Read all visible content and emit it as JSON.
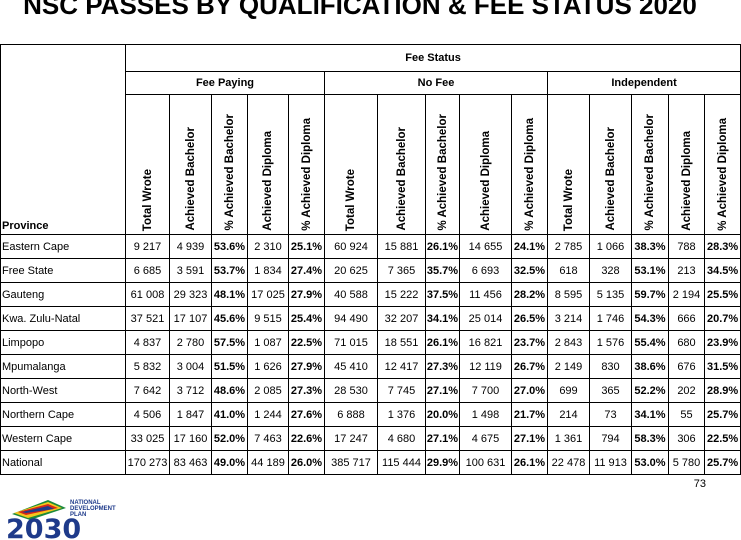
{
  "title": "NSC PASSES BY QUALIFICATION & FEE STATUS 2020",
  "header": {
    "fee_status": "Fee Status",
    "groups": [
      "Fee Paying",
      "No Fee",
      "Independent"
    ],
    "province": "Province",
    "columns": [
      "Total Wrote",
      "Achieved Bachelor",
      "% Achieved Bachelor",
      "Achieved Diploma",
      "% Achieved Diploma"
    ]
  },
  "rows": [
    {
      "province": "Eastern Cape",
      "cells": [
        "9 217",
        "4 939",
        "53.6%",
        "2 310",
        "25.1%",
        "60 924",
        "15 881",
        "26.1%",
        "14 655",
        "24.1%",
        "2 785",
        "1 066",
        "38.3%",
        "788",
        "28.3%"
      ]
    },
    {
      "province": "Free State",
      "cells": [
        "6 685",
        "3 591",
        "53.7%",
        "1 834",
        "27.4%",
        "20 625",
        "7 365",
        "35.7%",
        "6 693",
        "32.5%",
        "618",
        "328",
        "53.1%",
        "213",
        "34.5%"
      ]
    },
    {
      "province": "Gauteng",
      "cells": [
        "61 008",
        "29 323",
        "48.1%",
        "17 025",
        "27.9%",
        "40 588",
        "15 222",
        "37.5%",
        "11 456",
        "28.2%",
        "8 595",
        "5 135",
        "59.7%",
        "2 194",
        "25.5%"
      ]
    },
    {
      "province": "Kwa. Zulu-Natal",
      "cells": [
        "37 521",
        "17 107",
        "45.6%",
        "9 515",
        "25.4%",
        "94 490",
        "32 207",
        "34.1%",
        "25 014",
        "26.5%",
        "3 214",
        "1 746",
        "54.3%",
        "666",
        "20.7%"
      ]
    },
    {
      "province": "Limpopo",
      "cells": [
        "4 837",
        "2 780",
        "57.5%",
        "1 087",
        "22.5%",
        "71 015",
        "18 551",
        "26.1%",
        "16 821",
        "23.7%",
        "2 843",
        "1 576",
        "55.4%",
        "680",
        "23.9%"
      ]
    },
    {
      "province": "Mpumalanga",
      "cells": [
        "5 832",
        "3 004",
        "51.5%",
        "1 626",
        "27.9%",
        "45 410",
        "12 417",
        "27.3%",
        "12 119",
        "26.7%",
        "2 149",
        "830",
        "38.6%",
        "676",
        "31.5%"
      ]
    },
    {
      "province": "North-West",
      "cells": [
        "7 642",
        "3 712",
        "48.6%",
        "2 085",
        "27.3%",
        "28 530",
        "7 745",
        "27.1%",
        "7 700",
        "27.0%",
        "699",
        "365",
        "52.2%",
        "202",
        "28.9%"
      ]
    },
    {
      "province": "Northern Cape",
      "cells": [
        "4 506",
        "1 847",
        "41.0%",
        "1 244",
        "27.6%",
        "6 888",
        "1 376",
        "20.0%",
        "1 498",
        "21.7%",
        "214",
        "73",
        "34.1%",
        "55",
        "25.7%"
      ]
    },
    {
      "province": "Western Cape",
      "cells": [
        "33 025",
        "17 160",
        "52.0%",
        "7 463",
        "22.6%",
        "17 247",
        "4 680",
        "27.1%",
        "4 675",
        "27.1%",
        "1 361",
        "794",
        "58.3%",
        "306",
        "22.5%"
      ]
    },
    {
      "province": "National",
      "cells": [
        "170 273",
        "83 463",
        "49.0%",
        "44 189",
        "26.0%",
        "385 717",
        "115 444",
        "29.9%",
        "100 631",
        "26.1%",
        "22 478",
        "11 913",
        "53.0%",
        "5 780",
        "25.7%"
      ]
    }
  ],
  "logo": {
    "line1": "NATIONAL",
    "line2": "DEVELOPMENT",
    "line3": "PLAN",
    "year": "2030"
  },
  "page_number": "73"
}
